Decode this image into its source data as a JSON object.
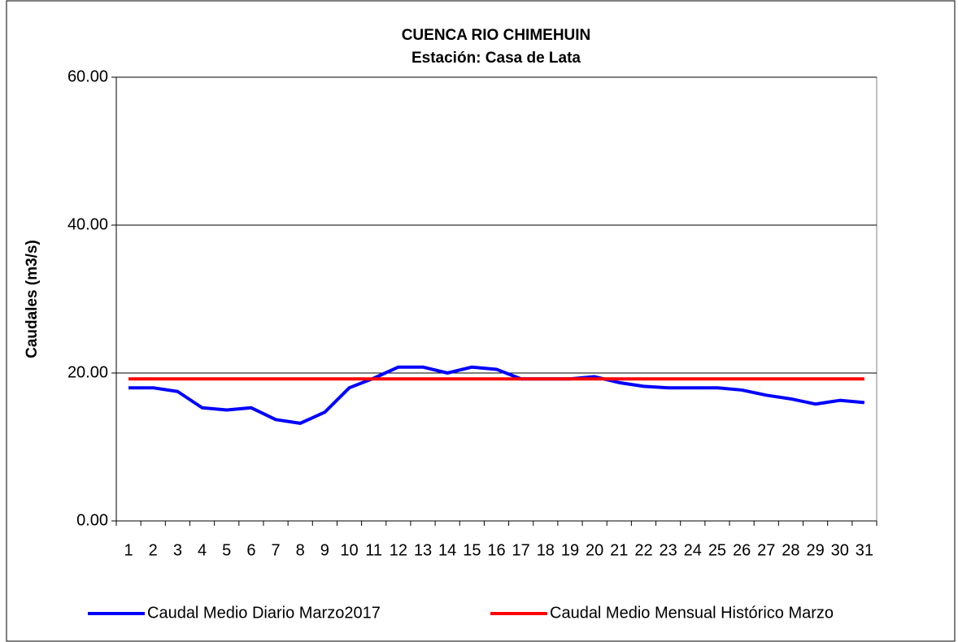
{
  "chart_data": {
    "type": "line",
    "title": "CUENCA RIO CHIMEHUIN",
    "subtitle": "Estación: Casa de Lata",
    "y_label": "Caudales (m3/s)",
    "categories": [
      "1",
      "2",
      "3",
      "4",
      "5",
      "6",
      "7",
      "8",
      "9",
      "10",
      "11",
      "12",
      "13",
      "14",
      "15",
      "16",
      "17",
      "18",
      "19",
      "20",
      "21",
      "22",
      "23",
      "24",
      "25",
      "26",
      "27",
      "28",
      "29",
      "30",
      "31"
    ],
    "series": [
      {
        "name": "Caudal Medio Diario Marzo2017",
        "color": "#0000ff",
        "values": [
          18.0,
          18.0,
          17.5,
          15.3,
          15.0,
          15.3,
          13.7,
          13.2,
          14.7,
          18.0,
          19.3,
          20.8,
          20.8,
          20.0,
          20.8,
          20.5,
          19.2,
          19.2,
          19.2,
          19.5,
          18.7,
          18.2,
          18.0,
          18.0,
          18.0,
          17.7,
          17.0,
          16.5,
          15.8,
          16.3,
          16.0
        ]
      },
      {
        "name": "Caudal Medio Mensual Histórico Marzo",
        "color": "#ff0000",
        "values": [
          19.2,
          19.2,
          19.2,
          19.2,
          19.2,
          19.2,
          19.2,
          19.2,
          19.2,
          19.2,
          19.2,
          19.2,
          19.2,
          19.2,
          19.2,
          19.2,
          19.2,
          19.2,
          19.2,
          19.2,
          19.2,
          19.2,
          19.2,
          19.2,
          19.2,
          19.2,
          19.2,
          19.2,
          19.2,
          19.2,
          19.2
        ]
      }
    ],
    "ylim": [
      0,
      60
    ],
    "yticks": [
      {
        "value": 0,
        "label": "0.00"
      },
      {
        "value": 20,
        "label": "20.00"
      },
      {
        "value": 40,
        "label": "40.00"
      },
      {
        "value": 60,
        "label": "60.00"
      }
    ],
    "grid": true,
    "legend": "bottom"
  }
}
